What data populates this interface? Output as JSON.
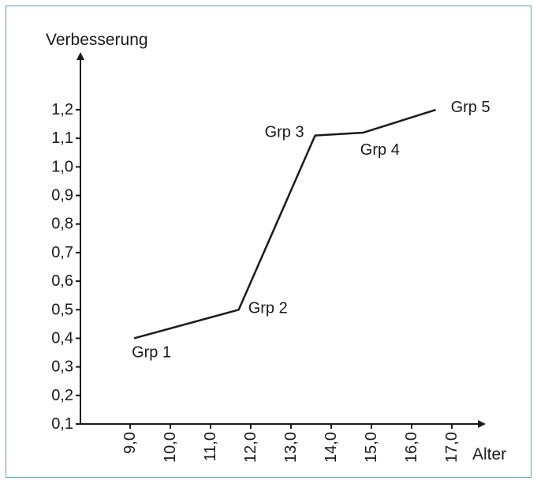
{
  "frame_color": "#5b9ec9",
  "line_color": "#1a1a1a",
  "chart_data": {
    "type": "line",
    "title": "",
    "xlabel": "Alter",
    "ylabel": "Verbesserung",
    "x_ticks": [
      "9,0",
      "10,0",
      "11,0",
      "12,0",
      "13,0",
      "14,0",
      "15,0",
      "16,0",
      "17,0"
    ],
    "y_ticks": [
      "0,1",
      "0,2",
      "0,3",
      "0,4",
      "0,5",
      "0,6",
      "0,7",
      "0,8",
      "0,9",
      "1,0",
      "1,1",
      "1,2"
    ],
    "grid": false,
    "legend": "none",
    "series": [
      {
        "points": [
          {
            "x": 9.1,
            "y": 0.4,
            "label": "Grp 1"
          },
          {
            "x": 11.7,
            "y": 0.5,
            "label": "Grp 2"
          },
          {
            "x": 13.6,
            "y": 1.11,
            "label": "Grp 3"
          },
          {
            "x": 14.8,
            "y": 1.12,
            "label": "Grp 4"
          },
          {
            "x": 16.6,
            "y": 1.2,
            "label": "Grp 5"
          }
        ]
      }
    ]
  }
}
